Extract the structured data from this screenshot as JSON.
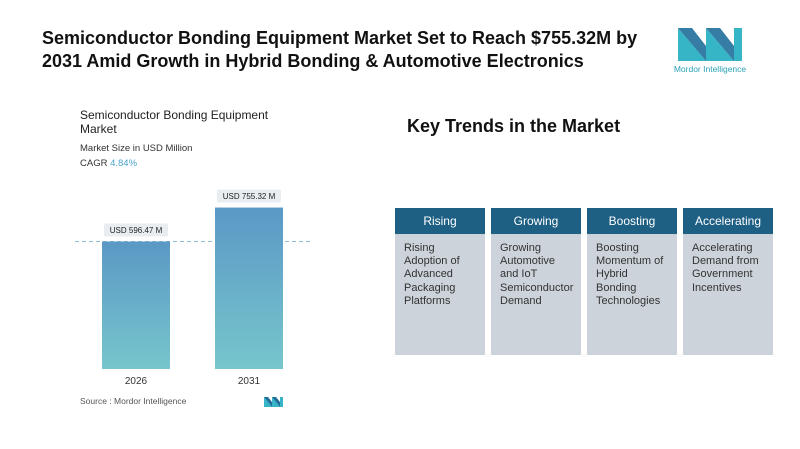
{
  "headline": "Semiconductor Bonding Equipment Market Set to Reach $755.32M by 2031 Amid Growth in Hybrid Bonding & Automotive Electronics",
  "brand": {
    "name": "Mordor Intelligence",
    "color": "#2aa1b5"
  },
  "card": {
    "title": "Semiconductor Bonding Equipment Market",
    "subtitle": "Market Size in USD Million",
    "cagr_label": "CAGR",
    "cagr_value": "4.84%",
    "source": "Source : Mordor Intelligence"
  },
  "chart_data": {
    "type": "bar",
    "categories": [
      "2026",
      "2031"
    ],
    "values": [
      596.47,
      755.32
    ],
    "data_labels": [
      "USD 596.47 M",
      "USD 755.32 M"
    ],
    "title": "Semiconductor Bonding Equipment Market",
    "ylabel": "Market Size in USD Million",
    "ylim": [
      0,
      800
    ],
    "grid": false,
    "reference_line": 596.47,
    "colors": [
      "#5b98c6",
      "#76c6cc"
    ]
  },
  "trends": {
    "title": "Key Trends in the Market",
    "items": [
      {
        "head": "Rising",
        "body": "Rising Adoption of Advanced Packaging Platforms"
      },
      {
        "head": "Growing",
        "body": "Growing Automotive and IoT Semiconductor Demand"
      },
      {
        "head": "Boosting",
        "body": "Boosting Momentum of Hybrid Bonding Technologies"
      },
      {
        "head": "Accelerating",
        "body": "Accelerating Demand from Government Incentives"
      }
    ]
  }
}
